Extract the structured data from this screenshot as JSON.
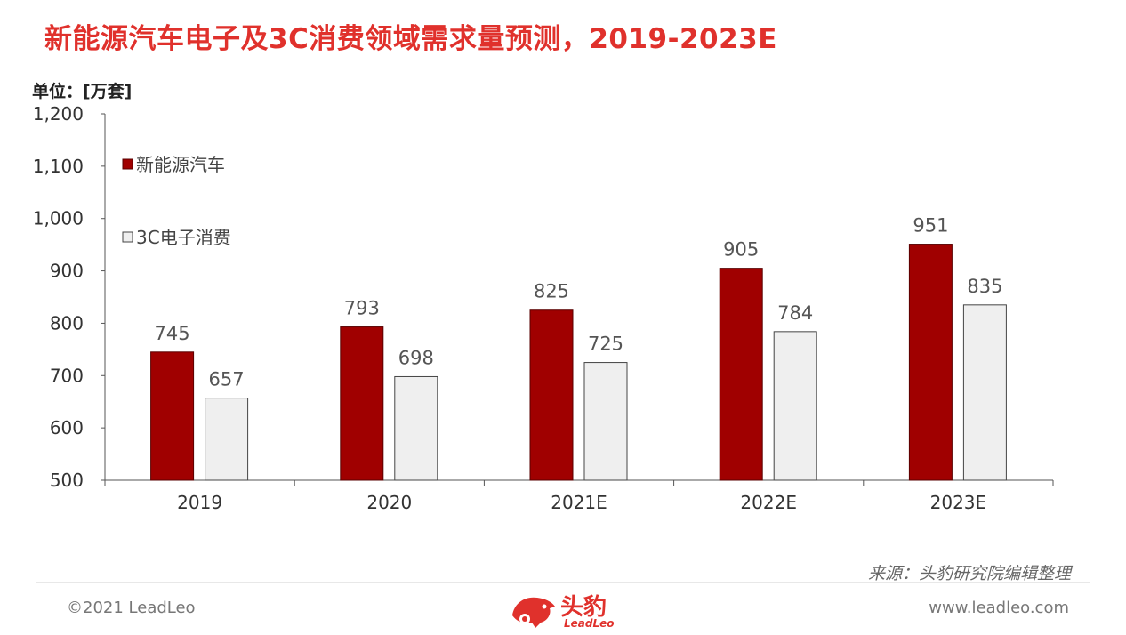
{
  "title": "新能源汽车电子及3C消费领域需求量预测，2019-2023E",
  "unit_label": "单位：[万套]",
  "source": "来源：头豹研究院编辑整理",
  "footer": {
    "copyright": "©2021 LeadLeo",
    "website": "www.leadleo.com",
    "logo_text": "头豹",
    "logo_sub": "LeadLeo"
  },
  "colors": {
    "title": "#e0312c",
    "series1": "#a00000",
    "series2": "#efefef",
    "axis": "#555555"
  },
  "chart_data": {
    "type": "bar",
    "categories": [
      "2019",
      "2020",
      "2021E",
      "2022E",
      "2023E"
    ],
    "series": [
      {
        "name": "新能源汽车",
        "values": [
          745,
          793,
          825,
          905,
          951
        ],
        "color": "#a00000"
      },
      {
        "name": "3C电子消费",
        "values": [
          657,
          698,
          725,
          784,
          835
        ],
        "color": "#efefef"
      }
    ],
    "ylim": [
      500,
      1200
    ],
    "yticks": [
      500,
      600,
      700,
      800,
      900,
      1000,
      1100,
      1200
    ],
    "ytick_labels": [
      "500",
      "600",
      "700",
      "800",
      "900",
      "1,000",
      "1,100",
      "1,200"
    ],
    "legend_position": "top-left",
    "grid": false
  }
}
